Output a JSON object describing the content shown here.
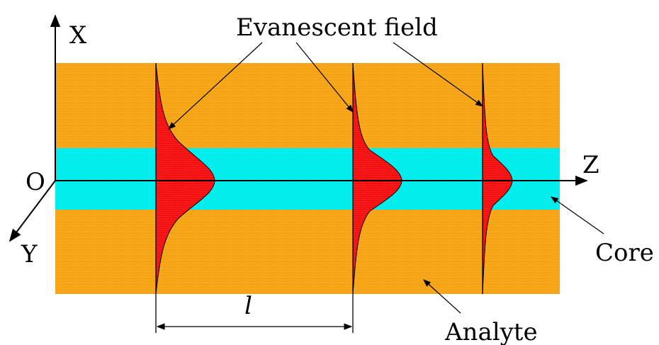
{
  "labels": {
    "x_axis": "X",
    "y_axis": "Y",
    "z_axis": "Z",
    "origin": "O",
    "evanescent": "Evanescent field",
    "length": "l",
    "core": "Core",
    "analyte": "Analyte"
  },
  "colors": {
    "cladding": "#f7a81b",
    "core": "#00f0f0",
    "field": "#ff1a1a",
    "line": "#000000"
  },
  "icons": [
    "arrow-head-icon"
  ]
}
